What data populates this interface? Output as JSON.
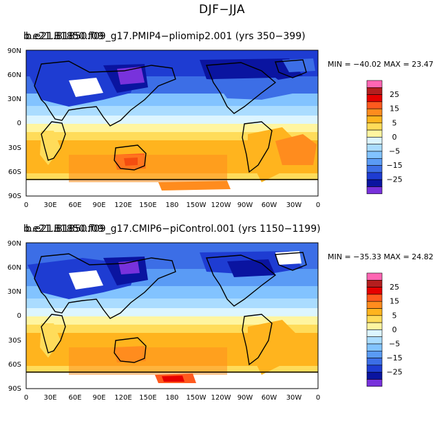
{
  "figure_title": "DJF−JJA",
  "axes": {
    "lat_labels": [
      "90N",
      "60N",
      "30N",
      "0",
      "30S",
      "60S",
      "90S"
    ],
    "lon_labels": [
      "0",
      "30E",
      "60E",
      "90E",
      "120E",
      "150E",
      "180",
      "150W",
      "120W",
      "90W",
      "60W",
      "30W",
      "0"
    ]
  },
  "colorbar": {
    "labels": [
      "25",
      "15",
      "5",
      "0",
      "−5",
      "−15",
      "−25"
    ],
    "colors": [
      "#ff66b3",
      "#b41e1e",
      "#e60000",
      "#ff5a1e",
      "#ff8c1e",
      "#ffb41e",
      "#ffdc5a",
      "#fff5a0",
      "#dcf5ff",
      "#aadcff",
      "#82c3ff",
      "#5a9bf5",
      "#3c6ee6",
      "#1e3cd2",
      "#0a14a0",
      "#7832dc"
    ]
  },
  "panels": [
    {
      "title_overlap_a": "b.e21.B1850.f09",
      "title": "b.e21.B1850.f09_g17.PMIP4−pliomip2.001 (yrs 350−399)",
      "min_label": "MIN = −40.02",
      "max_label": "MAX =  23.47",
      "min": -40.02,
      "max": 23.47
    },
    {
      "title_overlap_a": "b.e21.B1850.f09",
      "title": "b.e21.B1850.f09_g17.CMIP6−piControl.001 (yrs 1150−1199)",
      "min_label": "MIN = −35.33",
      "max_label": "MAX =  24.82",
      "min": -35.33,
      "max": 24.82
    }
  ]
}
